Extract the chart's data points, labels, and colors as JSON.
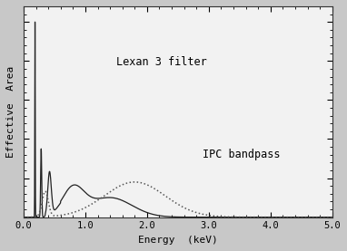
{
  "title": "",
  "xlabel": "Energy  (keV)",
  "ylabel": "Effective  Area",
  "xlim": [
    0.0,
    5.0
  ],
  "xticks": [
    0.0,
    1.0,
    2.0,
    3.0,
    4.0,
    5.0
  ],
  "xtick_labels": [
    "0.0",
    "1.0",
    "2.0",
    "3.0",
    "4.0",
    "5.0"
  ],
  "label_lexan": "Lexan 3 filter",
  "label_ipc": "IPC bandpass",
  "solid_color": "#222222",
  "dotted_color": "#555555",
  "bg_color": "#f2f2f2",
  "fig_bg": "#c8c8c8"
}
